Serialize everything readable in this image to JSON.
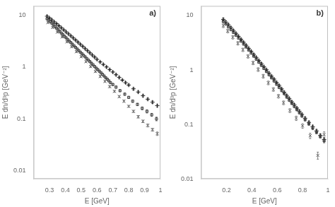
{
  "chart_data": [
    {
      "type": "scatter",
      "log": "y",
      "grid": false,
      "xlabel": "E [GeV]",
      "ylabel": "E dn/d³p [GeV⁻²]",
      "annotations": [
        "a)"
      ],
      "xlim": [
        0.2,
        1.0
      ],
      "ylim": [
        0.007,
        15
      ],
      "xticks": [
        0.3,
        0.4,
        0.5,
        0.6,
        0.7,
        0.8,
        0.9,
        1
      ],
      "yticks": [
        0.01,
        0.1,
        1,
        10
      ],
      "series": [
        {
          "color": "#444444",
          "marker": "square",
          "x": [
            0.285,
            0.295,
            0.305,
            0.315,
            0.325,
            0.335,
            0.345,
            0.355,
            0.365,
            0.375,
            0.385,
            0.395,
            0.405,
            0.415,
            0.425,
            0.435,
            0.445,
            0.455,
            0.465,
            0.475,
            0.485,
            0.495,
            0.505,
            0.515,
            0.525,
            0.535,
            0.545,
            0.555,
            0.565,
            0.575,
            0.585,
            0.595,
            0.605,
            0.615,
            0.625,
            0.635,
            0.645,
            0.655,
            0.665,
            0.675,
            0.685,
            0.7,
            0.72,
            0.745,
            0.775,
            0.8,
            0.825,
            0.855,
            0.885,
            0.915,
            0.945,
            0.975
          ],
          "values": [
            8.5,
            8.0,
            7.5,
            7.0,
            6.5,
            6.0,
            5.6,
            5.2,
            4.85,
            4.5,
            4.2,
            3.9,
            3.65,
            3.4,
            3.15,
            2.95,
            2.75,
            2.55,
            2.38,
            2.22,
            2.07,
            1.93,
            1.8,
            1.68,
            1.57,
            1.46,
            1.36,
            1.27,
            1.18,
            1.1,
            1.02,
            0.95,
            0.89,
            0.83,
            0.77,
            0.72,
            0.67,
            0.62,
            0.58,
            0.54,
            0.5,
            0.46,
            0.41,
            0.35,
            0.3,
            0.26,
            0.22,
            0.19,
            0.16,
            0.14,
            0.12,
            0.1
          ],
          "yerr": [
            0.3,
            0.28,
            0.26,
            0.24,
            0.22,
            0.2,
            0.18,
            0.17,
            0.16,
            0.15,
            0.14,
            0.13,
            0.12,
            0.11,
            0.1,
            0.09,
            0.09,
            0.08,
            0.08,
            0.07,
            0.07,
            0.06,
            0.06,
            0.06,
            0.05,
            0.05,
            0.05,
            0.04,
            0.04,
            0.04,
            0.04,
            0.03,
            0.03,
            0.03,
            0.03,
            0.03,
            0.02,
            0.02,
            0.02,
            0.02,
            0.02,
            0.02,
            0.02,
            0.015,
            0.015,
            0.012,
            0.012,
            0.01,
            0.01,
            0.01,
            0.008,
            0.008
          ]
        },
        {
          "color": "#222222",
          "marker": "plus",
          "x": [
            0.285,
            0.3,
            0.315,
            0.33,
            0.345,
            0.36,
            0.375,
            0.39,
            0.405,
            0.42,
            0.435,
            0.45,
            0.465,
            0.48,
            0.495,
            0.51,
            0.525,
            0.54,
            0.555,
            0.57,
            0.585,
            0.6,
            0.62,
            0.64,
            0.66,
            0.68,
            0.7,
            0.72,
            0.74,
            0.76,
            0.78,
            0.8,
            0.83,
            0.86,
            0.89,
            0.92,
            0.95,
            0.98
          ],
          "values": [
            9.5,
            8.8,
            8.1,
            7.4,
            6.8,
            6.2,
            5.7,
            5.2,
            4.75,
            4.35,
            3.97,
            3.62,
            3.3,
            3.0,
            2.73,
            2.49,
            2.26,
            2.06,
            1.87,
            1.7,
            1.55,
            1.4,
            1.25,
            1.12,
            1.0,
            0.89,
            0.8,
            0.71,
            0.63,
            0.56,
            0.5,
            0.45,
            0.38,
            0.33,
            0.28,
            0.24,
            0.21,
            0.18
          ],
          "yerr": [
            0.35,
            0.32,
            0.29,
            0.26,
            0.24,
            0.22,
            0.2,
            0.18,
            0.17,
            0.15,
            0.14,
            0.13,
            0.12,
            0.11,
            0.1,
            0.09,
            0.08,
            0.07,
            0.07,
            0.06,
            0.06,
            0.05,
            0.05,
            0.04,
            0.04,
            0.04,
            0.03,
            0.03,
            0.03,
            0.02,
            0.02,
            0.02,
            0.02,
            0.015,
            0.015,
            0.012,
            0.012,
            0.01
          ]
        },
        {
          "color": "#666666",
          "marker": "cross",
          "x": [
            0.29,
            0.32,
            0.35,
            0.38,
            0.41,
            0.44,
            0.47,
            0.5,
            0.53,
            0.56,
            0.59,
            0.62,
            0.65,
            0.68,
            0.71,
            0.74,
            0.77,
            0.8,
            0.83,
            0.86,
            0.89,
            0.92,
            0.95,
            0.98
          ],
          "values": [
            7.2,
            5.8,
            4.7,
            3.8,
            3.05,
            2.45,
            1.97,
            1.58,
            1.27,
            1.02,
            0.82,
            0.66,
            0.53,
            0.42,
            0.34,
            0.27,
            0.22,
            0.175,
            0.14,
            0.11,
            0.09,
            0.075,
            0.062,
            0.052
          ],
          "yerr": [
            0.25,
            0.2,
            0.16,
            0.13,
            0.1,
            0.08,
            0.07,
            0.06,
            0.05,
            0.04,
            0.03,
            0.03,
            0.02,
            0.02,
            0.015,
            0.012,
            0.01,
            0.008,
            0.007,
            0.006,
            0.005,
            0.005,
            0.004,
            0.004
          ]
        }
      ]
    },
    {
      "type": "scatter",
      "log": "y",
      "grid": false,
      "xlabel": "E [GeV]",
      "ylabel": "E dn/d³p [GeV⁻²]",
      "annotations": [
        "b)"
      ],
      "xlim": [
        0.0,
        1.0
      ],
      "ylim": [
        0.01,
        15
      ],
      "xticks": [
        0.2,
        0.4,
        0.6,
        0.8,
        1
      ],
      "yticks": [
        0.01,
        0.1,
        1,
        10
      ],
      "series": [
        {
          "color": "#444444",
          "marker": "square",
          "x": [
            0.175,
            0.195,
            0.215,
            0.235,
            0.255,
            0.275,
            0.295,
            0.315,
            0.335,
            0.355,
            0.375,
            0.395,
            0.415,
            0.435,
            0.455,
            0.475,
            0.495,
            0.515,
            0.535,
            0.555,
            0.575,
            0.595,
            0.615,
            0.635,
            0.655,
            0.675,
            0.695,
            0.715,
            0.735,
            0.755,
            0.775,
            0.795,
            0.82,
            0.85,
            0.88,
            0.91,
            0.94,
            0.97
          ],
          "values": [
            7.8,
            7.0,
            6.2,
            5.5,
            4.9,
            4.35,
            3.85,
            3.4,
            3.0,
            2.65,
            2.33,
            2.05,
            1.8,
            1.58,
            1.39,
            1.22,
            1.07,
            0.94,
            0.82,
            0.72,
            0.63,
            0.55,
            0.48,
            0.42,
            0.37,
            0.32,
            0.28,
            0.245,
            0.215,
            0.188,
            0.165,
            0.144,
            0.123,
            0.103,
            0.086,
            0.072,
            0.06,
            0.05
          ],
          "yerr": [
            0.4,
            0.35,
            0.3,
            0.26,
            0.22,
            0.19,
            0.17,
            0.15,
            0.13,
            0.11,
            0.1,
            0.09,
            0.08,
            0.07,
            0.06,
            0.05,
            0.05,
            0.04,
            0.04,
            0.035,
            0.03,
            0.028,
            0.025,
            0.022,
            0.02,
            0.018,
            0.016,
            0.014,
            0.013,
            0.011,
            0.01,
            0.009,
            0.008,
            0.007,
            0.006,
            0.005,
            0.004,
            0.004
          ]
        },
        {
          "color": "#222222",
          "marker": "plus",
          "x": [
            0.175,
            0.195,
            0.215,
            0.235,
            0.255,
            0.275,
            0.295,
            0.315,
            0.335,
            0.355,
            0.375,
            0.395,
            0.415,
            0.435,
            0.455,
            0.475,
            0.495,
            0.515,
            0.535,
            0.555,
            0.575,
            0.595,
            0.615,
            0.635,
            0.655,
            0.675,
            0.695,
            0.715,
            0.735,
            0.755,
            0.775,
            0.795,
            0.82,
            0.85,
            0.88,
            0.91,
            0.94,
            0.97
          ],
          "values": [
            8.5,
            7.6,
            6.8,
            6.0,
            5.3,
            4.7,
            4.15,
            3.65,
            3.22,
            2.84,
            2.5,
            2.2,
            1.93,
            1.7,
            1.49,
            1.31,
            1.15,
            1.01,
            0.88,
            0.77,
            0.68,
            0.59,
            0.52,
            0.45,
            0.39,
            0.34,
            0.3,
            0.26,
            0.23,
            0.2,
            0.175,
            0.153,
            0.13,
            0.109,
            0.091,
            0.076,
            0.063,
            0.053
          ],
          "yerr": [
            0.5,
            0.42,
            0.36,
            0.31,
            0.27,
            0.23,
            0.2,
            0.18,
            0.16,
            0.14,
            0.12,
            0.1,
            0.09,
            0.08,
            0.07,
            0.06,
            0.05,
            0.05,
            0.04,
            0.04,
            0.03,
            0.03,
            0.025,
            0.022,
            0.02,
            0.018,
            0.016,
            0.014,
            0.012,
            0.011,
            0.01,
            0.009,
            0.008,
            0.007,
            0.006,
            0.005,
            0.004,
            0.004
          ]
        },
        {
          "color": "#666666",
          "marker": "cross",
          "x": [
            0.175,
            0.21,
            0.25,
            0.29,
            0.33,
            0.37,
            0.41,
            0.45,
            0.49,
            0.53,
            0.57,
            0.61,
            0.65,
            0.7,
            0.75,
            0.8,
            0.86,
            0.92,
            0.97
          ],
          "values": [
            6.5,
            5.2,
            4.0,
            3.1,
            2.35,
            1.78,
            1.35,
            1.02,
            0.77,
            0.58,
            0.44,
            0.33,
            0.25,
            0.18,
            0.13,
            0.094,
            0.062,
            0.027,
            0.065
          ],
          "yerr": [
            0.5,
            0.4,
            0.3,
            0.23,
            0.17,
            0.13,
            0.1,
            0.08,
            0.06,
            0.045,
            0.034,
            0.026,
            0.02,
            0.015,
            0.012,
            0.009,
            0.007,
            0.004,
            0.008
          ]
        }
      ]
    }
  ]
}
